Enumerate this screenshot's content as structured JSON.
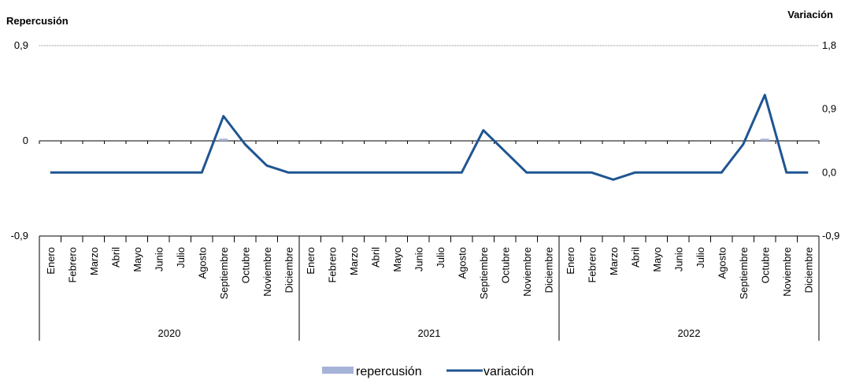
{
  "chart_data": {
    "type": "bar+line",
    "left_axis_title": "Repercusión",
    "right_axis_title": "Variación",
    "left_ticks": [
      "0,9",
      "0",
      "-0,9"
    ],
    "right_ticks": [
      "1,8",
      "0,9",
      "0,0",
      "-0,9"
    ],
    "left_ylim": [
      -0.9,
      0.9
    ],
    "right_ylim": [
      -0.9,
      1.8
    ],
    "years": [
      "2020",
      "2021",
      "2022"
    ],
    "months": [
      "Enero",
      "Febrero",
      "Marzo",
      "Abril",
      "Mayo",
      "Junio",
      "Julio",
      "Agosto",
      "Septiembre",
      "Octubre",
      "Noviembre",
      "Diciembre"
    ],
    "series": [
      {
        "name": "repercusión",
        "type": "bar",
        "axis": "left",
        "color": "#a6b3d9",
        "values": [
          0,
          0,
          0,
          0,
          0,
          0,
          0,
          0,
          0.02,
          0,
          0,
          0,
          0,
          0,
          0,
          0,
          0,
          0,
          0,
          0,
          0,
          0,
          0,
          0,
          0,
          0,
          0,
          0,
          0,
          0,
          0,
          0,
          0,
          0.02,
          0,
          0
        ]
      },
      {
        "name": "variación",
        "type": "line",
        "axis": "right",
        "color": "#1f5591",
        "values": [
          0.0,
          0.0,
          0.0,
          0.0,
          0.0,
          0.0,
          0.0,
          0.0,
          0.8,
          0.4,
          0.1,
          0.0,
          0.0,
          0.0,
          0.0,
          0.0,
          0.0,
          0.0,
          0.0,
          0.0,
          0.6,
          0.3,
          0.0,
          0.0,
          0.0,
          0.0,
          -0.1,
          0.0,
          0.0,
          0.0,
          0.0,
          0.0,
          0.4,
          1.1,
          0.0,
          0.0
        ]
      }
    ],
    "grid": "top-line-only",
    "legend": "bottom-center"
  }
}
